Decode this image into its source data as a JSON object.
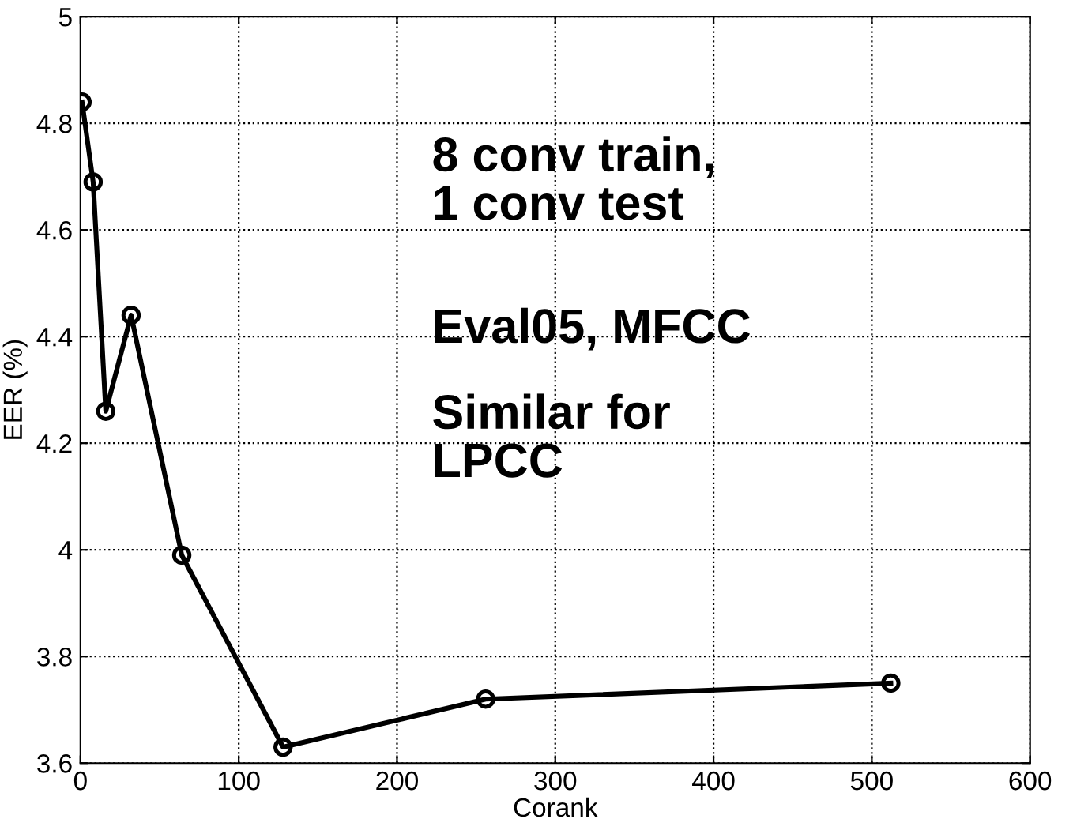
{
  "chart_data": {
    "type": "line",
    "xlabel": "Corank",
    "ylabel": "EER (%)",
    "x": [
      1,
      8,
      16,
      32,
      64,
      128,
      256,
      512
    ],
    "series": [
      {
        "color": "#000000",
        "values": [
          4.84,
          4.69,
          4.26,
          4.44,
          3.99,
          3.63,
          3.72,
          3.75
        ]
      }
    ],
    "xlim": [
      0,
      600
    ],
    "xticks": [
      0,
      100,
      200,
      300,
      400,
      500,
      600
    ],
    "ylim": [
      3.6,
      5
    ],
    "yticks": [
      3.6,
      3.8,
      4,
      4.2,
      4.4,
      4.6,
      4.8,
      5
    ],
    "grid": true,
    "marker": "circle",
    "line_style": "solid",
    "annotations": [
      "8 conv train,\n1 conv test",
      "Eval05, MFCC",
      "Similar for\nLPCC"
    ]
  }
}
